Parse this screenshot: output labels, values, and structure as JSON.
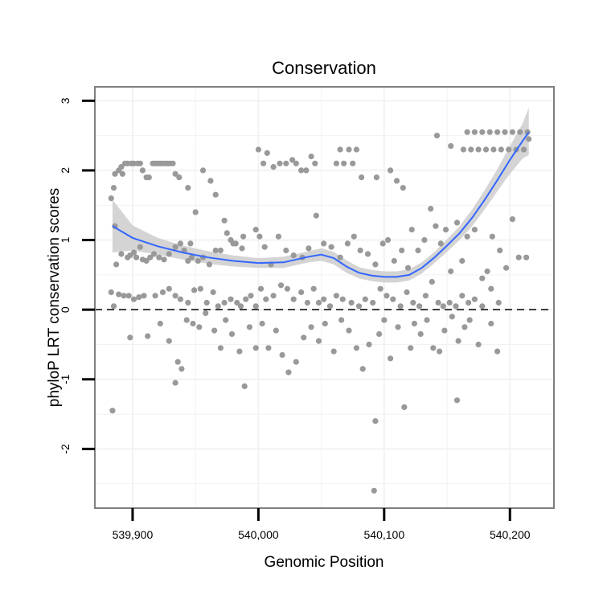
{
  "chart_data": {
    "type": "scatter",
    "title": "Conservation",
    "xlabel": "Genomic Position",
    "ylabel": "phyloP LRT conservation scores",
    "xlim": [
      539870,
      540235
    ],
    "ylim": [
      -2.85,
      3.2
    ],
    "x_ticks": [
      539900,
      540000,
      540100,
      540200
    ],
    "x_tick_labels": [
      "539,900",
      "540,000",
      "540,100",
      "540,200"
    ],
    "y_ticks": [
      -2,
      -1,
      0,
      1,
      2,
      3
    ],
    "y_tick_labels": [
      "-2",
      "-1",
      "0",
      "1",
      "2",
      "3"
    ],
    "reference_line": {
      "y": 0,
      "style": "dashed"
    },
    "grid": true,
    "colors": {
      "points": "#999999",
      "smooth": "#3366ff",
      "band": "#cccccc",
      "frame": "#7f7f7f",
      "grid": "#f2f2f2"
    },
    "points": [
      [
        539883,
        1.6
      ],
      [
        539885,
        1.75
      ],
      [
        539886,
        1.95
      ],
      [
        539889,
        2.0
      ],
      [
        539891,
        2.05
      ],
      [
        539892,
        1.95
      ],
      [
        539894,
        2.1
      ],
      [
        539896,
        2.1
      ],
      [
        539899,
        2.1
      ],
      [
        539901,
        2.1
      ],
      [
        539904,
        2.1
      ],
      [
        539906,
        2.1
      ],
      [
        539908,
        2.0
      ],
      [
        539911,
        1.9
      ],
      [
        539913,
        1.9
      ],
      [
        539916,
        2.1
      ],
      [
        539918,
        2.1
      ],
      [
        539920,
        2.1
      ],
      [
        539922,
        2.1
      ],
      [
        539924,
        2.1
      ],
      [
        539926,
        2.1
      ],
      [
        539928,
        2.1
      ],
      [
        539930,
        2.1
      ],
      [
        539932,
        2.1
      ],
      [
        539934,
        1.95
      ],
      [
        539937,
        1.9
      ],
      [
        539886,
        1.2
      ],
      [
        539887,
        0.65
      ],
      [
        539891,
        0.8
      ],
      [
        539896,
        0.75
      ],
      [
        539898,
        0.78
      ],
      [
        539901,
        0.82
      ],
      [
        539903,
        0.75
      ],
      [
        539906,
        0.9
      ],
      [
        539908,
        0.72
      ],
      [
        539911,
        0.7
      ],
      [
        539914,
        0.75
      ],
      [
        539917,
        0.8
      ],
      [
        539921,
        0.75
      ],
      [
        539925,
        0.72
      ],
      [
        539929,
        0.8
      ],
      [
        539934,
        0.9
      ],
      [
        539938,
        0.95
      ],
      [
        539941,
        0.85
      ],
      [
        539944,
        0.7
      ],
      [
        539947,
        0.75
      ],
      [
        539952,
        0.7
      ],
      [
        539956,
        0.75
      ],
      [
        539961,
        0.65
      ],
      [
        539966,
        0.85
      ],
      [
        539970,
        0.85
      ],
      [
        539975,
        1.1
      ],
      [
        539978,
        1.0
      ],
      [
        539982,
        0.95
      ],
      [
        539987,
        0.88
      ],
      [
        539883,
        0.25
      ],
      [
        539885,
        0.05
      ],
      [
        539889,
        0.22
      ],
      [
        539893,
        0.2
      ],
      [
        539897,
        0.2
      ],
      [
        539901,
        0.15
      ],
      [
        539905,
        0.18
      ],
      [
        539909,
        0.2
      ],
      [
        539918,
        0.2
      ],
      [
        539924,
        0.25
      ],
      [
        539929,
        0.3
      ],
      [
        539934,
        0.2
      ],
      [
        539938,
        0.15
      ],
      [
        539944,
        0.1
      ],
      [
        539949,
        0.28
      ],
      [
        539954,
        0.3
      ],
      [
        539959,
        0.1
      ],
      [
        539964,
        0.25
      ],
      [
        539968,
        0.05
      ],
      [
        539973,
        0.1
      ],
      [
        539978,
        0.15
      ],
      [
        539983,
        0.1
      ],
      [
        539986,
        0.05
      ],
      [
        539990,
        0.15
      ],
      [
        539994,
        0.2
      ],
      [
        539998,
        0.05
      ],
      [
        539884,
        -1.45
      ],
      [
        539898,
        -0.4
      ],
      [
        539912,
        -0.38
      ],
      [
        539922,
        -0.2
      ],
      [
        539929,
        -0.45
      ],
      [
        539934,
        -1.05
      ],
      [
        539936,
        -0.75
      ],
      [
        539939,
        -0.85
      ],
      [
        539943,
        -0.15
      ],
      [
        539948,
        -0.2
      ],
      [
        539953,
        -0.25
      ],
      [
        539958,
        -0.05
      ],
      [
        539965,
        -0.3
      ],
      [
        539970,
        -0.55
      ],
      [
        539974,
        -0.15
      ],
      [
        539979,
        -0.35
      ],
      [
        539985,
        -0.6
      ],
      [
        539989,
        -1.1
      ],
      [
        539993,
        -0.25
      ],
      [
        539998,
        -0.55
      ],
      [
        539944,
        1.75
      ],
      [
        539946,
        0.95
      ],
      [
        539950,
        1.4
      ],
      [
        539956,
        2.0
      ],
      [
        539962,
        1.85
      ],
      [
        539966,
        1.65
      ],
      [
        539973,
        1.28
      ],
      [
        539980,
        0.95
      ],
      [
        539988,
        1.05
      ],
      [
        539998,
        1.15
      ],
      [
        540000,
        2.3
      ],
      [
        540004,
        2.1
      ],
      [
        540007,
        2.25
      ],
      [
        540012,
        2.05
      ],
      [
        540017,
        2.1
      ],
      [
        540022,
        2.1
      ],
      [
        540027,
        2.15
      ],
      [
        540030,
        2.1
      ],
      [
        540034,
        2.0
      ],
      [
        540038,
        2.0
      ],
      [
        540042,
        2.2
      ],
      [
        540045,
        2.1
      ],
      [
        540001,
        1.05
      ],
      [
        540005,
        0.9
      ],
      [
        540010,
        0.65
      ],
      [
        540016,
        1.05
      ],
      [
        540022,
        0.85
      ],
      [
        540028,
        0.78
      ],
      [
        540035,
        0.75
      ],
      [
        540040,
        0.88
      ],
      [
        540046,
        1.35
      ],
      [
        540052,
        0.95
      ],
      [
        540058,
        0.9
      ],
      [
        540065,
        0.75
      ],
      [
        540071,
        0.95
      ],
      [
        540076,
        1.05
      ],
      [
        540081,
        0.85
      ],
      [
        540087,
        0.8
      ],
      [
        540093,
        0.65
      ],
      [
        540099,
        0.95
      ],
      [
        540103,
        1.0
      ],
      [
        540108,
        0.7
      ],
      [
        540114,
        0.85
      ],
      [
        540119,
        0.6
      ],
      [
        540002,
        0.3
      ],
      [
        540006,
        0.15
      ],
      [
        540012,
        0.2
      ],
      [
        540018,
        0.35
      ],
      [
        540023,
        0.3
      ],
      [
        540028,
        0.15
      ],
      [
        540034,
        0.25
      ],
      [
        540039,
        0.1
      ],
      [
        540044,
        0.3
      ],
      [
        540048,
        0.1
      ],
      [
        540052,
        0.15
      ],
      [
        540057,
        0.05
      ],
      [
        540062,
        0.2
      ],
      [
        540067,
        0.15
      ],
      [
        540074,
        0.1
      ],
      [
        540080,
        0.05
      ],
      [
        540085,
        0.15
      ],
      [
        540091,
        0.1
      ],
      [
        540097,
        0.3
      ],
      [
        540102,
        0.2
      ],
      [
        540107,
        0.15
      ],
      [
        540113,
        0.05
      ],
      [
        540118,
        0.25
      ],
      [
        540003,
        -0.2
      ],
      [
        540008,
        -0.55
      ],
      [
        540014,
        -0.3
      ],
      [
        540019,
        -0.65
      ],
      [
        540024,
        -0.9
      ],
      [
        540030,
        -0.75
      ],
      [
        540036,
        -0.4
      ],
      [
        540042,
        -0.25
      ],
      [
        540048,
        -0.45
      ],
      [
        540053,
        -0.2
      ],
      [
        540060,
        -0.6
      ],
      [
        540066,
        -0.15
      ],
      [
        540072,
        -0.3
      ],
      [
        540078,
        -0.55
      ],
      [
        540083,
        -0.85
      ],
      [
        540088,
        -0.5
      ],
      [
        540093,
        -1.6
      ],
      [
        540096,
        -0.35
      ],
      [
        540100,
        -0.15
      ],
      [
        540105,
        -0.7
      ],
      [
        540111,
        -0.25
      ],
      [
        540116,
        -1.4
      ],
      [
        540121,
        -0.55
      ],
      [
        540092,
        -2.6
      ],
      [
        540062,
        2.1
      ],
      [
        540065,
        2.3
      ],
      [
        540068,
        2.1
      ],
      [
        540072,
        2.3
      ],
      [
        540075,
        2.1
      ],
      [
        540078,
        2.3
      ],
      [
        540082,
        1.9
      ],
      [
        540094,
        1.9
      ],
      [
        540105,
        2.0
      ],
      [
        540110,
        1.85
      ],
      [
        540115,
        1.75
      ],
      [
        540122,
        1.15
      ],
      [
        540127,
        0.85
      ],
      [
        540132,
        1.0
      ],
      [
        540137,
        1.45
      ],
      [
        540141,
        1.2
      ],
      [
        540145,
        0.95
      ],
      [
        540149,
        1.15
      ],
      [
        540153,
        0.55
      ],
      [
        540158,
        1.25
      ],
      [
        540162,
        0.7
      ],
      [
        540166,
        1.05
      ],
      [
        540172,
        1.15
      ],
      [
        540178,
        0.45
      ],
      [
        540182,
        0.55
      ],
      [
        540186,
        1.05
      ],
      [
        540192,
        0.85
      ],
      [
        540197,
        0.6
      ],
      [
        540202,
        1.3
      ],
      [
        540207,
        0.75
      ],
      [
        540213,
        0.75
      ],
      [
        540123,
        0.1
      ],
      [
        540128,
        0.05
      ],
      [
        540133,
        0.2
      ],
      [
        540138,
        0.4
      ],
      [
        540143,
        0.1
      ],
      [
        540147,
        0.05
      ],
      [
        540152,
        0.1
      ],
      [
        540157,
        0.05
      ],
      [
        540162,
        0.2
      ],
      [
        540167,
        0.1
      ],
      [
        540172,
        0.15
      ],
      [
        540178,
        0.05
      ],
      [
        540185,
        0.3
      ],
      [
        540191,
        0.1
      ],
      [
        540124,
        -0.2
      ],
      [
        540129,
        -0.35
      ],
      [
        540134,
        -0.15
      ],
      [
        540139,
        -0.55
      ],
      [
        540144,
        -0.6
      ],
      [
        540148,
        -0.3
      ],
      [
        540154,
        -0.1
      ],
      [
        540159,
        -0.45
      ],
      [
        540164,
        -0.25
      ],
      [
        540168,
        -0.15
      ],
      [
        540175,
        -0.5
      ],
      [
        540185,
        -0.2
      ],
      [
        540190,
        -0.6
      ],
      [
        540158,
        -1.3
      ],
      [
        540142,
        2.5
      ],
      [
        540153,
        2.35
      ],
      [
        540163,
        2.3
      ],
      [
        540166,
        2.55
      ],
      [
        540169,
        2.3
      ],
      [
        540172,
        2.55
      ],
      [
        540175,
        2.3
      ],
      [
        540178,
        2.55
      ],
      [
        540181,
        2.3
      ],
      [
        540184,
        2.55
      ],
      [
        540187,
        2.3
      ],
      [
        540190,
        2.55
      ],
      [
        540193,
        2.3
      ],
      [
        540196,
        2.55
      ],
      [
        540199,
        2.3
      ],
      [
        540202,
        2.55
      ],
      [
        540205,
        2.3
      ],
      [
        540208,
        2.55
      ],
      [
        540211,
        2.3
      ],
      [
        540214,
        2.55
      ],
      [
        540215,
        2.45
      ]
    ],
    "smooth": {
      "x": [
        539884,
        539900,
        539920,
        539940,
        539960,
        539980,
        540000,
        540020,
        540040,
        540050,
        540060,
        540070,
        540080,
        540090,
        540100,
        540110,
        540120,
        540130,
        540140,
        540150,
        540160,
        540170,
        540180,
        540190,
        540200,
        540210,
        540215
      ],
      "y": [
        1.2,
        1.03,
        0.91,
        0.82,
        0.75,
        0.7,
        0.67,
        0.68,
        0.76,
        0.79,
        0.74,
        0.62,
        0.53,
        0.49,
        0.47,
        0.47,
        0.5,
        0.6,
        0.75,
        0.92,
        1.1,
        1.32,
        1.58,
        1.86,
        2.15,
        2.42,
        2.55
      ],
      "lower": [
        0.82,
        0.85,
        0.79,
        0.72,
        0.66,
        0.62,
        0.6,
        0.6,
        0.68,
        0.7,
        0.65,
        0.53,
        0.45,
        0.41,
        0.39,
        0.39,
        0.42,
        0.52,
        0.67,
        0.83,
        1.0,
        1.2,
        1.44,
        1.7,
        1.95,
        2.17,
        2.22
      ],
      "upper": [
        1.58,
        1.21,
        1.03,
        0.92,
        0.84,
        0.78,
        0.74,
        0.76,
        0.84,
        0.88,
        0.83,
        0.71,
        0.61,
        0.57,
        0.55,
        0.55,
        0.58,
        0.68,
        0.83,
        1.01,
        1.2,
        1.44,
        1.72,
        2.02,
        2.35,
        2.67,
        2.9
      ]
    }
  }
}
